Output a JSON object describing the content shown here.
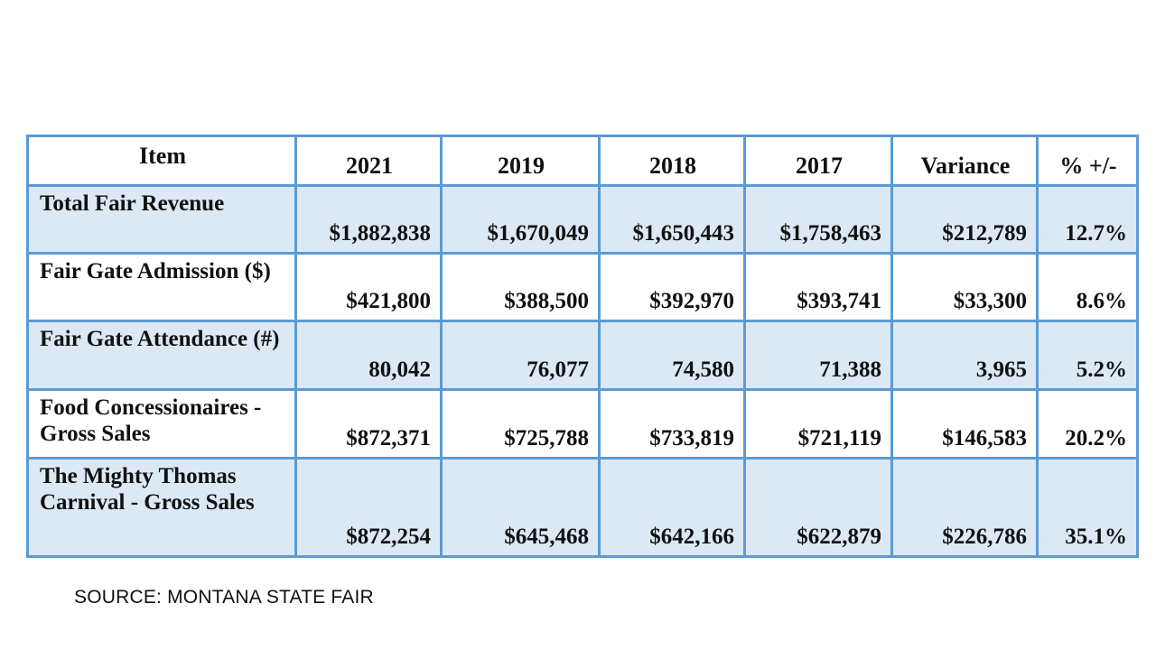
{
  "table": {
    "headers": [
      "Item",
      "2021",
      "2019",
      "2018",
      "2017",
      "Variance",
      "% +/-"
    ],
    "rows": [
      {
        "label": "Total Fair Revenue",
        "values": [
          "$1,882,838",
          "$1,670,049",
          "$1,650,443",
          "$1,758,463",
          "$212,789",
          "12.7%"
        ]
      },
      {
        "label": "Fair Gate Admission ($)",
        "values": [
          "$421,800",
          "$388,500",
          "$392,970",
          "$393,741",
          "$33,300",
          "8.6%"
        ]
      },
      {
        "label": "Fair Gate Attendance (#)",
        "values": [
          "80,042",
          "76,077",
          "74,580",
          "71,388",
          "3,965",
          "5.2%"
        ]
      },
      {
        "label": "Food Concessionaires - Gross Sales",
        "values": [
          "$872,371",
          "$725,788",
          "$733,819",
          "$721,119",
          "$146,583",
          "20.2%"
        ]
      },
      {
        "label": "The Mighty Thomas Carnival - Gross Sales",
        "values": [
          "$872,254",
          "$645,468",
          "$642,166",
          "$622,879",
          "$226,786",
          "35.1%"
        ]
      }
    ]
  },
  "source": "SOURCE: MONTANA STATE FAIR",
  "colors": {
    "border": "#5b9bd5",
    "row_shade": "#dce9f5"
  }
}
